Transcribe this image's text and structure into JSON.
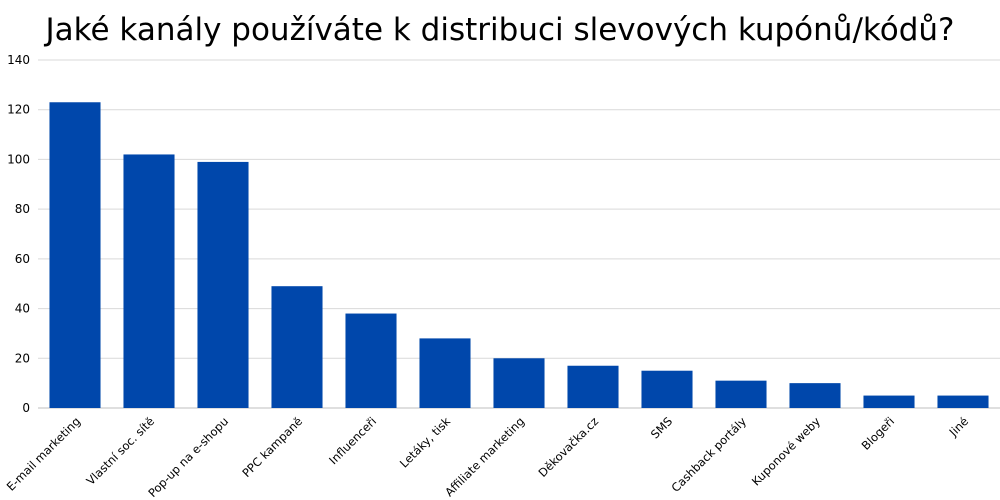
{
  "chart_data": {
    "type": "bar",
    "title": "Jaké kanály používáte k distribuci slevových kupónů/kódů?",
    "xlabel": "",
    "ylabel": "",
    "categories": [
      "E-mail marketing",
      "Vlastní soc. sítě",
      "Pop-up na e-shopu",
      "PPC kampaně",
      "Influenceři",
      "Letáky, tisk",
      "Affiliate marketing",
      "Děkovačka.cz",
      "SMS",
      "Cashback portály",
      "Kuponové weby",
      "Blogeři",
      "Jiné"
    ],
    "values": [
      123,
      102,
      99,
      49,
      38,
      28,
      20,
      17,
      15,
      11,
      10,
      5,
      5
    ],
    "ylim": [
      0,
      140
    ],
    "yticks": [
      0,
      20,
      40,
      60,
      80,
      100,
      120,
      140
    ],
    "grid": true,
    "colors": {
      "bar": "#0047ab",
      "grid": "#d9d9d9",
      "axis": "#bfbfbf"
    }
  }
}
